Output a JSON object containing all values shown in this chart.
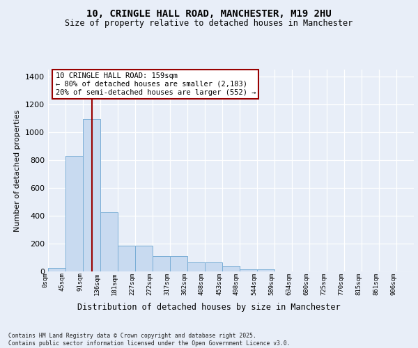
{
  "title": "10, CRINGLE HALL ROAD, MANCHESTER, M19 2HU",
  "subtitle": "Size of property relative to detached houses in Manchester",
  "xlabel": "Distribution of detached houses by size in Manchester",
  "ylabel": "Number of detached properties",
  "bar_color": "#c8daf0",
  "bar_edge_color": "#7aaed6",
  "background_color": "#e8eef8",
  "grid_color": "#d0d8e8",
  "categories": [
    "0sqm",
    "45sqm",
    "91sqm",
    "136sqm",
    "181sqm",
    "227sqm",
    "272sqm",
    "317sqm",
    "362sqm",
    "408sqm",
    "453sqm",
    "498sqm",
    "544sqm",
    "589sqm",
    "634sqm",
    "680sqm",
    "725sqm",
    "770sqm",
    "815sqm",
    "861sqm",
    "906sqm"
  ],
  "values": [
    25,
    830,
    1095,
    425,
    185,
    185,
    110,
    110,
    65,
    65,
    40,
    15,
    15,
    0,
    0,
    0,
    0,
    0,
    0,
    0,
    0
  ],
  "vline_x": 2.5,
  "vline_color": "#990000",
  "annotation_text": "10 CRINGLE HALL ROAD: 159sqm\n← 80% of detached houses are smaller (2,183)\n20% of semi-detached houses are larger (552) →",
  "ylim_max": 1450,
  "yticks": [
    0,
    200,
    400,
    600,
    800,
    1000,
    1200,
    1400
  ],
  "footer_line1": "Contains HM Land Registry data © Crown copyright and database right 2025.",
  "footer_line2": "Contains public sector information licensed under the Open Government Licence v3.0."
}
